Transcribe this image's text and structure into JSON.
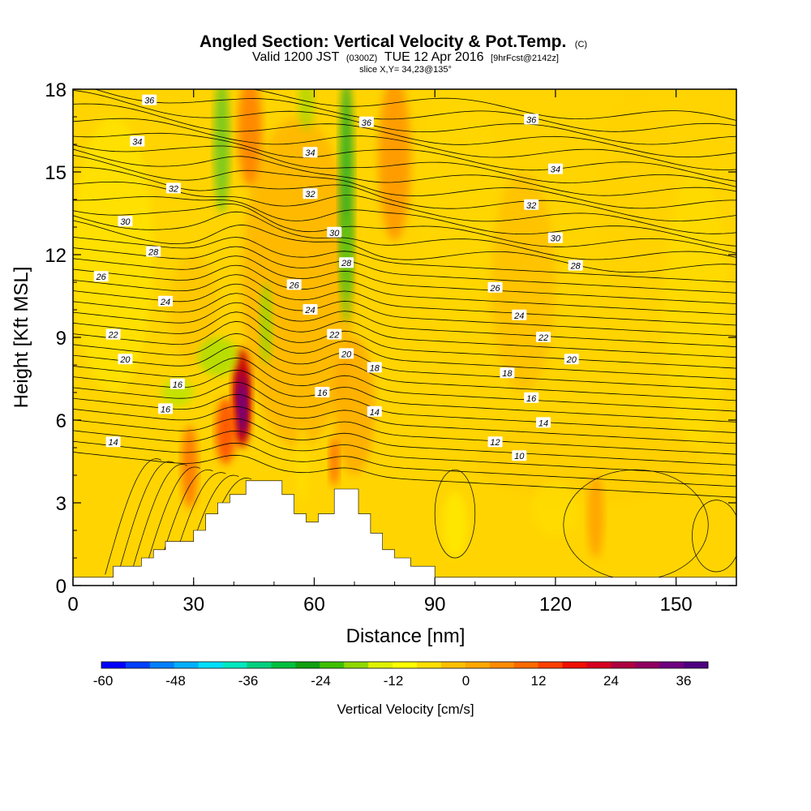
{
  "title": {
    "main": "Angled Section: Vertical Velocity & Pot.Temp.",
    "main_suffix": "(C)",
    "valid_prefix": "Valid 1200 JST",
    "valid_utc": "(0300Z)",
    "valid_date": "TUE 12 Apr 2016",
    "valid_fcst": "[9hrFcst@2142z]",
    "slice": "slice X,Y= 34,23@135°"
  },
  "chart_data": {
    "type": "heatmap",
    "xlabel": "Distance [nm]",
    "ylabel": "Height [Kft MSL]",
    "xlim": [
      0,
      165
    ],
    "ylim": [
      0,
      18
    ],
    "x_ticks": [
      "0",
      "30",
      "60",
      "90",
      "120",
      "150"
    ],
    "y_ticks": [
      "0",
      "3",
      "6",
      "9",
      "12",
      "15",
      "18"
    ],
    "colorbar": {
      "label": "Vertical Velocity [cm/s]",
      "tick_labels": [
        "-60",
        "-48",
        "-36",
        "-24",
        "-12",
        "0",
        "12",
        "24",
        "36"
      ],
      "colors": [
        "#0000ff",
        "#0040ff",
        "#0080ff",
        "#00b0ff",
        "#00e0ff",
        "#00e8c0",
        "#00d080",
        "#00c040",
        "#10a010",
        "#40c000",
        "#90d800",
        "#e0f000",
        "#ffff00",
        "#ffe000",
        "#ffc000",
        "#ffa800",
        "#ff8c00",
        "#ff6a00",
        "#ff4000",
        "#f01000",
        "#d80020",
        "#b00040",
        "#900060",
        "#700080",
        "#500080"
      ]
    },
    "terrain_profile": [
      [
        0,
        0.3
      ],
      [
        10,
        0.3
      ],
      [
        10,
        0.7
      ],
      [
        17,
        0.7
      ],
      [
        17,
        1.0
      ],
      [
        20,
        1.0
      ],
      [
        20,
        1.3
      ],
      [
        23,
        1.3
      ],
      [
        23,
        1.6
      ],
      [
        30,
        1.6
      ],
      [
        30,
        2.0
      ],
      [
        33,
        2.0
      ],
      [
        33,
        2.6
      ],
      [
        36,
        2.6
      ],
      [
        36,
        3.0
      ],
      [
        39,
        3.0
      ],
      [
        39,
        3.3
      ],
      [
        43,
        3.3
      ],
      [
        43,
        3.8
      ],
      [
        52,
        3.8
      ],
      [
        52,
        3.3
      ],
      [
        55,
        3.3
      ],
      [
        55,
        2.6
      ],
      [
        58,
        2.6
      ],
      [
        58,
        2.3
      ],
      [
        61,
        2.3
      ],
      [
        61,
        2.6
      ],
      [
        65,
        2.6
      ],
      [
        65,
        3.5
      ],
      [
        71,
        3.5
      ],
      [
        71,
        2.6
      ],
      [
        74,
        2.6
      ],
      [
        74,
        1.9
      ],
      [
        77,
        1.9
      ],
      [
        77,
        1.3
      ],
      [
        80,
        1.3
      ],
      [
        80,
        1.0
      ],
      [
        84,
        1.0
      ],
      [
        84,
        0.7
      ],
      [
        90,
        0.7
      ],
      [
        90,
        0.3
      ],
      [
        165,
        0.3
      ]
    ],
    "isentrope_labels": [
      {
        "text": "36",
        "x": 19,
        "y": 17.6
      },
      {
        "text": "34",
        "x": 16,
        "y": 16.1
      },
      {
        "text": "32",
        "x": 25,
        "y": 14.4
      },
      {
        "text": "30",
        "x": 13,
        "y": 13.2
      },
      {
        "text": "28",
        "x": 20,
        "y": 12.1
      },
      {
        "text": "26",
        "x": 7,
        "y": 11.2
      },
      {
        "text": "24",
        "x": 23,
        "y": 10.3
      },
      {
        "text": "22",
        "x": 10,
        "y": 9.1
      },
      {
        "text": "20",
        "x": 13,
        "y": 8.2
      },
      {
        "text": "16",
        "x": 26,
        "y": 7.3
      },
      {
        "text": "16",
        "x": 23,
        "y": 6.4
      },
      {
        "text": "14",
        "x": 10,
        "y": 5.2
      },
      {
        "text": "36",
        "x": 73,
        "y": 16.8
      },
      {
        "text": "34",
        "x": 59,
        "y": 15.7
      },
      {
        "text": "32",
        "x": 59,
        "y": 14.2
      },
      {
        "text": "30",
        "x": 65,
        "y": 12.8
      },
      {
        "text": "28",
        "x": 68,
        "y": 11.7
      },
      {
        "text": "26",
        "x": 55,
        "y": 10.9
      },
      {
        "text": "24",
        "x": 59,
        "y": 10.0
      },
      {
        "text": "22",
        "x": 65,
        "y": 9.1
      },
      {
        "text": "20",
        "x": 68,
        "y": 8.4
      },
      {
        "text": "18",
        "x": 75,
        "y": 7.9
      },
      {
        "text": "16",
        "x": 62,
        "y": 7.0
      },
      {
        "text": "14",
        "x": 75,
        "y": 6.3
      },
      {
        "text": "36",
        "x": 114,
        "y": 16.9
      },
      {
        "text": "34",
        "x": 120,
        "y": 15.1
      },
      {
        "text": "32",
        "x": 114,
        "y": 13.8
      },
      {
        "text": "30",
        "x": 120,
        "y": 12.6
      },
      {
        "text": "28",
        "x": 125,
        "y": 11.6
      },
      {
        "text": "26",
        "x": 105,
        "y": 10.8
      },
      {
        "text": "24",
        "x": 111,
        "y": 9.8
      },
      {
        "text": "22",
        "x": 117,
        "y": 9.0
      },
      {
        "text": "20",
        "x": 124,
        "y": 8.2
      },
      {
        "text": "18",
        "x": 108,
        "y": 7.7
      },
      {
        "text": "16",
        "x": 114,
        "y": 6.8
      },
      {
        "text": "14",
        "x": 117,
        "y": 5.9
      },
      {
        "text": "12",
        "x": 105,
        "y": 5.2
      },
      {
        "text": "10",
        "x": 111,
        "y": 4.7
      }
    ]
  }
}
